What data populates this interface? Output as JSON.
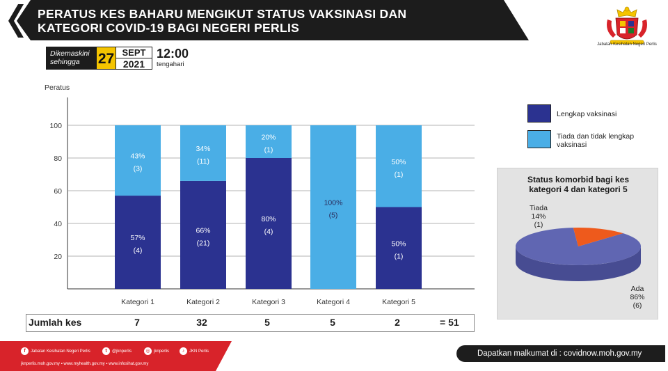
{
  "header": {
    "title_line1": "PERATUS KES BAHARU MENGIKUT STATUS VAKSINASI  DAN",
    "title_line2": "KATEGORI COVID-19 BAGI NEGERI PERLIS",
    "crest_caption": "Jabatan Kesihatan Negeri Perlis"
  },
  "update": {
    "label_line1": "Dikemaskini",
    "label_line2": "sehingga",
    "day": "27",
    "month": "SEPT",
    "year": "2021",
    "time": "12:00",
    "time_suffix": "tengahari"
  },
  "colors": {
    "lengkap": "#2b3290",
    "tiada": "#4aaee6",
    "pie_ada": "#6066b2",
    "pie_tiada": "#ee5a1c",
    "banner": "#1c1c1c",
    "footer_red": "#d8232a"
  },
  "chart_data": [
    {
      "type": "bar",
      "stacked": true,
      "ylabel": "Peratus",
      "ylim": [
        0,
        100
      ],
      "yticks": [
        20,
        40,
        60,
        80,
        100
      ],
      "grid": true,
      "legend_position": "right",
      "categories": [
        "Kategori 1",
        "Kategori 2",
        "Kategori 3",
        "Kategori 4",
        "Kategori 5"
      ],
      "series": [
        {
          "name": "Lengkap vaksinasi",
          "values": [
            57,
            66,
            80,
            0,
            50
          ],
          "labels": [
            "57%",
            "66%",
            "80%",
            "",
            "50%"
          ],
          "counts": [
            "(4)",
            "(21)",
            "(4)",
            "",
            "(1)"
          ]
        },
        {
          "name": "Tiada dan tidak lengkap vaksinasi",
          "values": [
            43,
            34,
            20,
            100,
            50
          ],
          "labels": [
            "43%",
            "34%",
            "20%",
            "100%",
            "50%"
          ],
          "counts": [
            "(3)",
            "(11)",
            "(1)",
            "(5)",
            "(1)"
          ]
        }
      ]
    },
    {
      "type": "pie",
      "title_line1": "Status komorbid bagi kes",
      "title_line2": "kategori 4 dan kategori 5",
      "slices": [
        {
          "name": "Ada",
          "value": 86,
          "label": "86%",
          "count": "(6)"
        },
        {
          "name": "Tiada",
          "value": 14,
          "label": "14%",
          "count": "(1)"
        }
      ]
    }
  ],
  "legend": {
    "item1": "Lengkap vaksinasi",
    "item2_line1": "Tiada dan tidak lengkap",
    "item2_line2": "vaksinasi"
  },
  "jumlah": {
    "label": "Jumlah kes",
    "values": [
      "7",
      "32",
      "5",
      "5",
      "2"
    ],
    "total": "= 51"
  },
  "footer": {
    "facebook": "Jabatan Kesihatan Negeri Perlis",
    "twitter": "@jknperlis",
    "instagram": "jknperlis",
    "tiktok": "JKN Perlis",
    "links": "jknperlis.moh.gov.my  ▪ www.myhealth.gov.my  ▪ www.infosihat.gov.my",
    "source": "Dapatkan malkumat di : covidnow.moh.gov.my"
  }
}
